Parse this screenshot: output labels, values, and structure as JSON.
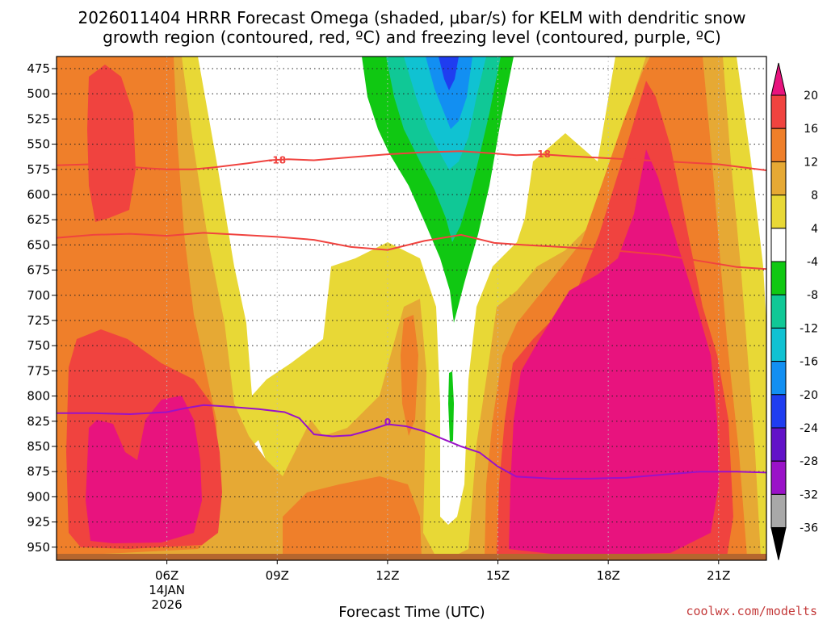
{
  "chart_data": {
    "type": "heatmap",
    "title_lines": [
      "2026011404 HRRR Forecast Omega (shaded, μbar/s) for KELM with dendritic snow",
      "growth region (contoured, red, ºC) and freezing level (contoured, purple, ºC)"
    ],
    "xlabel": "Forecast Time (UTC)",
    "credit": "coolwx.com/modelts",
    "x_range_hours": [
      3,
      22.3
    ],
    "x_ticks": [
      {
        "hour": 6,
        "label": "06Z",
        "sub": [
          "14JAN",
          "2026"
        ]
      },
      {
        "hour": 9,
        "label": "09Z",
        "sub": []
      },
      {
        "hour": 12,
        "label": "12Z",
        "sub": []
      },
      {
        "hour": 15,
        "label": "15Z",
        "sub": []
      },
      {
        "hour": 18,
        "label": "18Z",
        "sub": []
      },
      {
        "hour": 21,
        "label": "21Z",
        "sub": []
      }
    ],
    "y_range_hpa": [
      463,
      963
    ],
    "y_ticks": [
      475,
      500,
      525,
      550,
      575,
      600,
      625,
      650,
      675,
      700,
      725,
      750,
      775,
      800,
      825,
      850,
      875,
      900,
      925,
      950
    ],
    "colorbar": {
      "levels": [
        20,
        16,
        12,
        8,
        4,
        -4,
        -8,
        -12,
        -16,
        -20,
        -24,
        -28,
        -32,
        -36
      ],
      "colors": [
        "#e8137e",
        "#f0433f",
        "#ef7f2a",
        "#e6a934",
        "#e8d836",
        "#ffffff",
        "#10c812",
        "#10c896",
        "#10c2d2",
        "#128ff2",
        "#1f3df0",
        "#6212c8",
        "#9a12c8",
        "#a8a8a8",
        "#000000"
      ]
    },
    "fill_colors": {
      "c4": "#e8d836",
      "c8": "#e6a934",
      "c12": "#ef7f2a",
      "c16": "#f0433f",
      "c20": "#e8137e",
      "n4": "#10c812",
      "n8": "#10c896",
      "n12": "#10c2d2",
      "n16": "#128ff2",
      "n20": "#1f3df0"
    },
    "ground_color": "#b5662e",
    "contours": [
      {
        "name": "-18",
        "color": "#f0433f",
        "label": "-18",
        "points": [
          [
            3.0,
            571
          ],
          [
            3.9,
            570
          ],
          [
            4.8,
            572
          ],
          [
            5.5,
            574
          ],
          [
            6.0,
            575
          ],
          [
            6.7,
            575
          ],
          [
            7.3,
            573
          ],
          [
            8.2,
            569
          ],
          [
            8.8,
            566
          ],
          [
            9.3,
            565
          ],
          [
            10.0,
            566
          ],
          [
            11.0,
            563
          ],
          [
            12.0,
            560
          ],
          [
            13.0,
            558
          ],
          [
            14.0,
            557
          ],
          [
            14.8,
            559
          ],
          [
            15.5,
            561
          ],
          [
            16.2,
            560
          ],
          [
            17.0,
            562
          ],
          [
            18.0,
            564
          ],
          [
            19.0,
            566
          ],
          [
            20.0,
            568
          ],
          [
            21.0,
            570
          ],
          [
            22.3,
            576
          ]
        ],
        "label_pos": [
          [
            9.0,
            566
          ],
          [
            16.2,
            560
          ]
        ]
      },
      {
        "name": "-12",
        "color": "#f0433f",
        "label": "",
        "points": [
          [
            3.0,
            643
          ],
          [
            4.0,
            640
          ],
          [
            5.0,
            639
          ],
          [
            6.0,
            641
          ],
          [
            7.0,
            638
          ],
          [
            8.0,
            640
          ],
          [
            9.0,
            642
          ],
          [
            10.0,
            645
          ],
          [
            11.0,
            652
          ],
          [
            12.0,
            655
          ],
          [
            13.0,
            646
          ],
          [
            14.0,
            640
          ],
          [
            14.9,
            648
          ],
          [
            15.7,
            650
          ],
          [
            16.7,
            652
          ],
          [
            18.0,
            655
          ],
          [
            19.5,
            660
          ],
          [
            20.5,
            666
          ],
          [
            21.5,
            672
          ],
          [
            22.3,
            674
          ]
        ],
        "label_pos": []
      },
      {
        "name": "0",
        "color": "#9a12c8",
        "label": "0",
        "points": [
          [
            3.0,
            817
          ],
          [
            4.0,
            817
          ],
          [
            5.0,
            818
          ],
          [
            6.0,
            816
          ],
          [
            6.5,
            812
          ],
          [
            7.0,
            809
          ],
          [
            7.5,
            810
          ],
          [
            8.5,
            813
          ],
          [
            9.2,
            816
          ],
          [
            9.6,
            822
          ],
          [
            10.0,
            838
          ],
          [
            10.5,
            840
          ],
          [
            11.0,
            839
          ],
          [
            11.5,
            834
          ],
          [
            12.0,
            828
          ],
          [
            12.5,
            830
          ],
          [
            13.0,
            835
          ],
          [
            14.0,
            850
          ],
          [
            14.5,
            856
          ],
          [
            15.0,
            870
          ],
          [
            15.5,
            880
          ],
          [
            16.5,
            882
          ],
          [
            17.5,
            882
          ],
          [
            18.5,
            881
          ],
          [
            19.5,
            878
          ],
          [
            20.5,
            875
          ],
          [
            21.5,
            875
          ],
          [
            22.3,
            876
          ]
        ],
        "label_pos": [
          [
            12.0,
            826
          ]
        ]
      }
    ]
  }
}
